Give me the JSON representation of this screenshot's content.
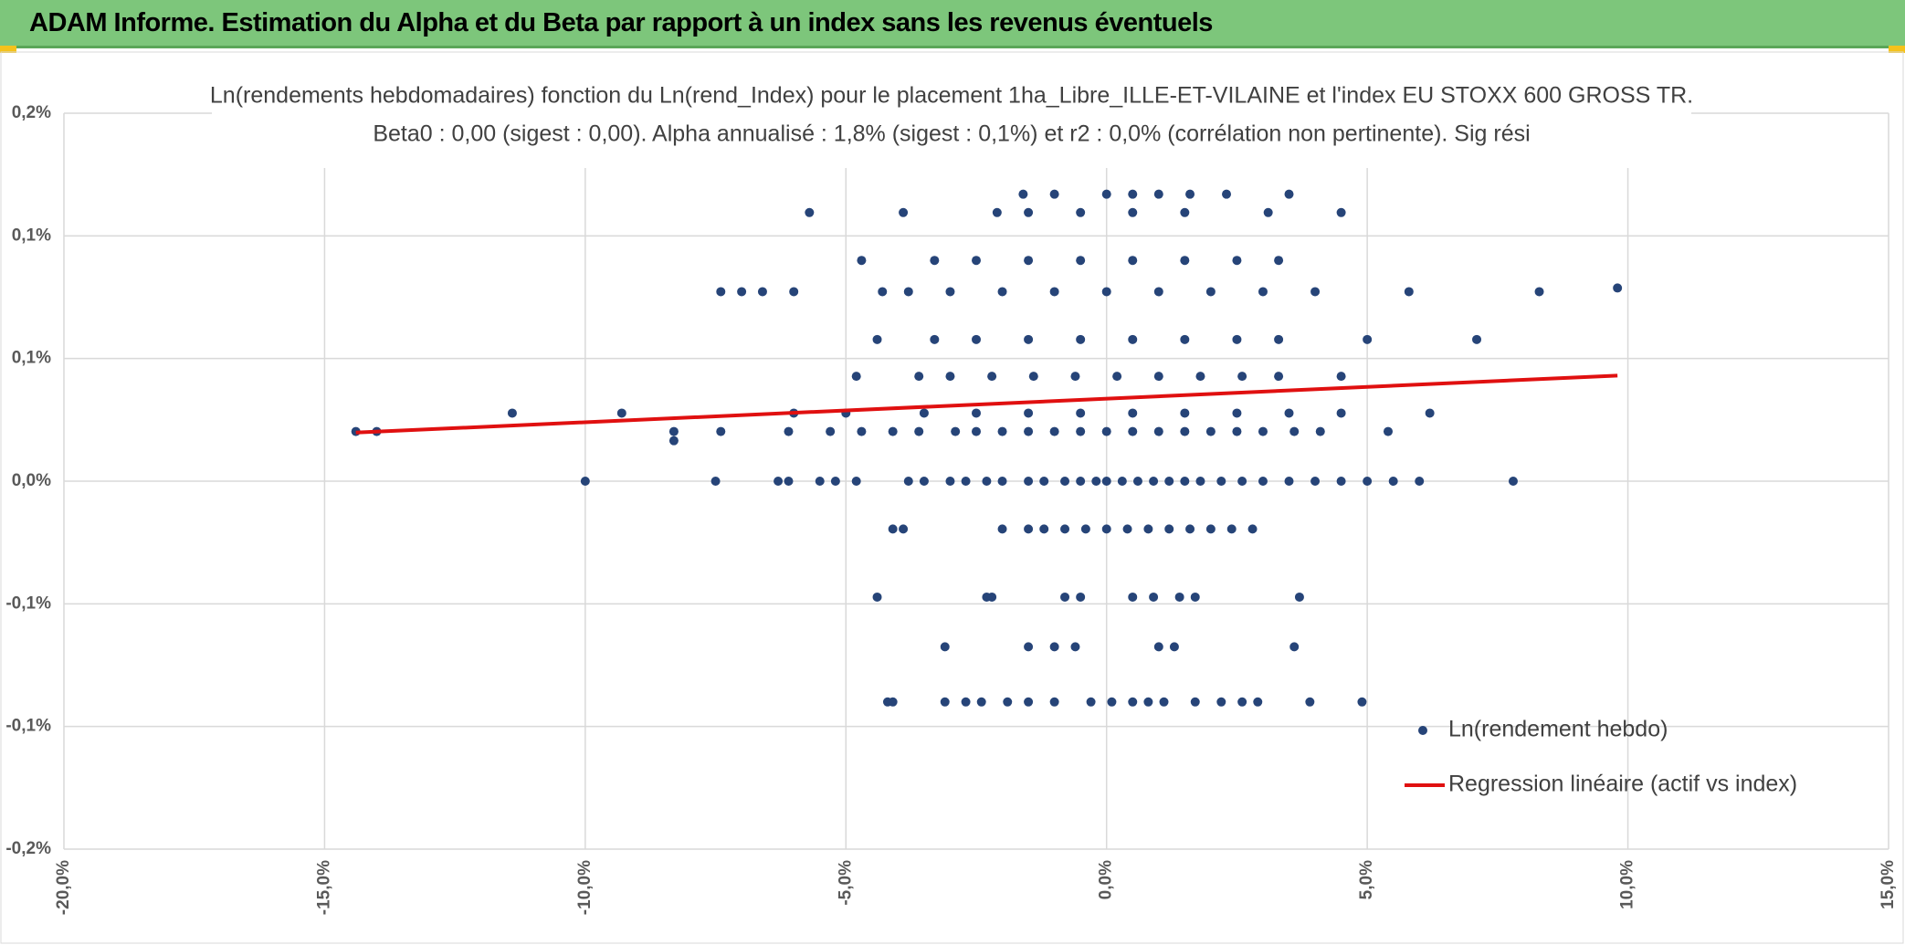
{
  "banner_title": "ADAM Informe. Estimation du Alpha et du Beta par rapport à un index sans les revenus éventuels",
  "chart_data": {
    "type": "scatter",
    "title": "Ln(rendements hebdomadaires) fonction du Ln(rend_Index) pour le placement 1ha_Libre_ILLE-ET-VILAINE et l'index EU STOXX 600 GROSS TR.",
    "subtitle": "Beta0 : 0,00 (sigest : 0,00). Alpha annualisé : 1,8% (sigest : 0,1%) et r2 : 0,0% (corrélation non pertinente). Sig rési",
    "xlim": [
      -20,
      15
    ],
    "xticks": [
      {
        "value": -20,
        "label": "-20,0%"
      },
      {
        "value": -15,
        "label": "-15,0%"
      },
      {
        "value": -10,
        "label": "-10,0%"
      },
      {
        "value": -5,
        "label": "-5,0%"
      },
      {
        "value": 0,
        "label": "0,0%"
      },
      {
        "value": 5,
        "label": "5,0%"
      },
      {
        "value": 10,
        "label": "10,0%"
      },
      {
        "value": 15,
        "label": "15,0%"
      }
    ],
    "ylim": [
      -0.2,
      0.2
    ],
    "yticks": [
      {
        "value": 0.2,
        "label": "0,2%"
      },
      {
        "value": 0.1333,
        "label": "0,1%"
      },
      {
        "value": 0.0667,
        "label": "0,1%"
      },
      {
        "value": 0,
        "label": "0,0%"
      },
      {
        "value": -0.0667,
        "label": "-0,1%"
      },
      {
        "value": -0.1333,
        "label": "-0,1%"
      },
      {
        "value": -0.2,
        "label": "-0,2%"
      }
    ],
    "grid": true,
    "legend": "lower right",
    "series": [
      {
        "name": "Ln(rendement hebdo)",
        "color": "#264478",
        "style": "markers",
        "x": [
          -10,
          -7.5,
          -6.3,
          -6.1,
          -5.5,
          -5.2,
          -4.8,
          -3.8,
          -3.5,
          -3,
          -2.7,
          -2.3,
          -2,
          -1.5,
          -1.2,
          -0.8,
          -0.5,
          -0.2,
          0,
          0.3,
          0.6,
          0.9,
          1.2,
          1.5,
          1.8,
          2.2,
          2.6,
          3,
          3.5,
          4,
          4.5,
          5,
          5.5,
          6,
          7.8,
          -4.1,
          -3.9,
          -2,
          -1.5,
          -1.2,
          -0.8,
          -0.4,
          0,
          0.4,
          0.8,
          1.2,
          1.6,
          2,
          2.4,
          2.8,
          -4.4,
          -2.3,
          -2.2,
          -0.8,
          -0.5,
          0.5,
          0.9,
          1.4,
          1.7,
          3.7,
          -3.1,
          -1.5,
          -1,
          -0.6,
          1,
          1.3,
          3.6,
          -4.2,
          -4.1,
          -3.1,
          -2.7,
          -2.4,
          -1.9,
          -1.5,
          -1,
          -0.3,
          0.1,
          0.5,
          0.8,
          1.1,
          1.7,
          2.2,
          2.6,
          2.9,
          3.9,
          4.9,
          -8.3,
          -7.4,
          -6.1,
          -5.3,
          -4.7,
          -4.1,
          -3.6,
          -2.9,
          -2.5,
          -2,
          -1.5,
          -1,
          -0.5,
          0,
          0.5,
          1,
          1.5,
          2,
          2.5,
          3,
          3.6,
          4.1,
          5.4,
          -11.4,
          -9.3,
          -6,
          -5,
          -3.5,
          -2.5,
          -1.5,
          -0.5,
          0.5,
          1.5,
          2.5,
          3.5,
          4.5,
          6.2,
          -14.4,
          -14,
          -8.3,
          -4.8,
          -3.6,
          -3,
          -2.2,
          -1.4,
          -0.6,
          0.2,
          1,
          1.8,
          2.6,
          3.3,
          4.5,
          -4.4,
          -3.3,
          -2.5,
          -1.5,
          -0.5,
          0.5,
          1.5,
          2.5,
          3.3,
          5,
          7.1,
          -7.4,
          -7,
          -6.6,
          -6,
          -4.3,
          -3.8,
          -3,
          -2,
          -1,
          0,
          1,
          2,
          3,
          4,
          5.8,
          8.3,
          9.8,
          -4.7,
          -3.3,
          -2.5,
          -1.5,
          -0.5,
          0.5,
          1.5,
          2.5,
          3.3,
          -5.7,
          -3.9,
          -2.1,
          -1.5,
          -0.5,
          0.5,
          1.5,
          3.1,
          4.5,
          -1.6,
          -1,
          0,
          0.5,
          1,
          1.6,
          2.3,
          3.5
        ],
        "values": [
          0,
          0,
          0,
          0,
          0,
          0,
          0,
          0,
          0,
          0,
          0,
          0,
          0,
          0,
          0,
          0,
          0,
          0,
          0,
          0,
          0,
          0,
          0,
          0,
          0,
          0,
          0,
          0,
          0,
          0,
          0,
          0,
          0,
          0,
          0,
          -0.026,
          -0.026,
          -0.026,
          -0.026,
          -0.026,
          -0.026,
          -0.026,
          -0.026,
          -0.026,
          -0.026,
          -0.026,
          -0.026,
          -0.026,
          -0.026,
          -0.026,
          -0.063,
          -0.063,
          -0.063,
          -0.063,
          -0.063,
          -0.063,
          -0.063,
          -0.063,
          -0.063,
          -0.063,
          -0.09,
          -0.09,
          -0.09,
          -0.09,
          -0.09,
          -0.09,
          -0.09,
          -0.12,
          -0.12,
          -0.12,
          -0.12,
          -0.12,
          -0.12,
          -0.12,
          -0.12,
          -0.12,
          -0.12,
          -0.12,
          -0.12,
          -0.12,
          -0.12,
          -0.12,
          -0.12,
          -0.12,
          -0.12,
          -0.12,
          0.027,
          0.027,
          0.027,
          0.027,
          0.027,
          0.027,
          0.027,
          0.027,
          0.027,
          0.027,
          0.027,
          0.027,
          0.027,
          0.027,
          0.027,
          0.027,
          0.027,
          0.027,
          0.027,
          0.027,
          0.027,
          0.027,
          0.027,
          0.037,
          0.037,
          0.037,
          0.037,
          0.037,
          0.037,
          0.037,
          0.037,
          0.037,
          0.037,
          0.037,
          0.037,
          0.037,
          0.037,
          0.027,
          0.027,
          0.022,
          0.057,
          0.057,
          0.057,
          0.057,
          0.057,
          0.057,
          0.057,
          0.057,
          0.057,
          0.057,
          0.057,
          0.057,
          0.077,
          0.077,
          0.077,
          0.077,
          0.077,
          0.077,
          0.077,
          0.077,
          0.077,
          0.077,
          0.077,
          0.103,
          0.103,
          0.103,
          0.103,
          0.103,
          0.103,
          0.103,
          0.103,
          0.103,
          0.103,
          0.103,
          0.103,
          0.103,
          0.103,
          0.103,
          0.103,
          0.105,
          0.12,
          0.12,
          0.12,
          0.12,
          0.12,
          0.12,
          0.12,
          0.12,
          0.12,
          0.146,
          0.146,
          0.146,
          0.146,
          0.146,
          0.146,
          0.146,
          0.146,
          0.146,
          0.156,
          0.156,
          0.156,
          0.156,
          0.156,
          0.156,
          0.156,
          0.156
        ]
      },
      {
        "name": "Regression linéaire (actif vs index)",
        "color": "#e01010",
        "style": "line",
        "x": [
          -14.4,
          9.8
        ],
        "values": [
          0.0264,
          0.0574
        ]
      }
    ]
  }
}
